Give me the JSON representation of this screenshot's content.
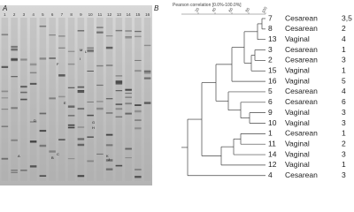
{
  "panel_a": {
    "label": "A",
    "lanes": [
      "1",
      "2",
      "3",
      "4",
      "5",
      "6",
      "7",
      "8",
      "9",
      "10",
      "11",
      "12",
      "13",
      "14",
      "15",
      "16"
    ],
    "bands": [
      "A",
      "B",
      "C",
      "D",
      "E",
      "F",
      "G",
      "H",
      "I",
      "J",
      "K",
      "L",
      "M"
    ]
  },
  "panel_b": {
    "label": "B",
    "scale_title": "Pearson correlation [0.0%-100.0%]",
    "scale_ticks": [
      "20",
      "40",
      "60",
      "80",
      "100"
    ],
    "rows": [
      [
        "7",
        "Cesarean",
        "3,5"
      ],
      [
        "8",
        "Cesarean",
        "2"
      ],
      [
        "13",
        "Vaginal",
        "4"
      ],
      [
        "3",
        "Cesarean",
        "1"
      ],
      [
        "2",
        "Cesarean",
        "3"
      ],
      [
        "15",
        "Vaginal",
        "1"
      ],
      [
        "16",
        "Vaginal",
        "5"
      ],
      [
        "5",
        "Cesarean",
        "4"
      ],
      [
        "6",
        "Cesarean",
        "6"
      ],
      [
        "9",
        "Vaginal",
        "3"
      ],
      [
        "10",
        "Vaginal",
        "3"
      ],
      [
        "1",
        "Cesarean",
        "1"
      ],
      [
        "11",
        "Vaginal",
        "2"
      ],
      [
        "14",
        "Vaginal",
        "3"
      ],
      [
        "12",
        "Vaginal",
        "1"
      ],
      [
        "4",
        "Cesarean",
        "3"
      ]
    ]
  }
}
